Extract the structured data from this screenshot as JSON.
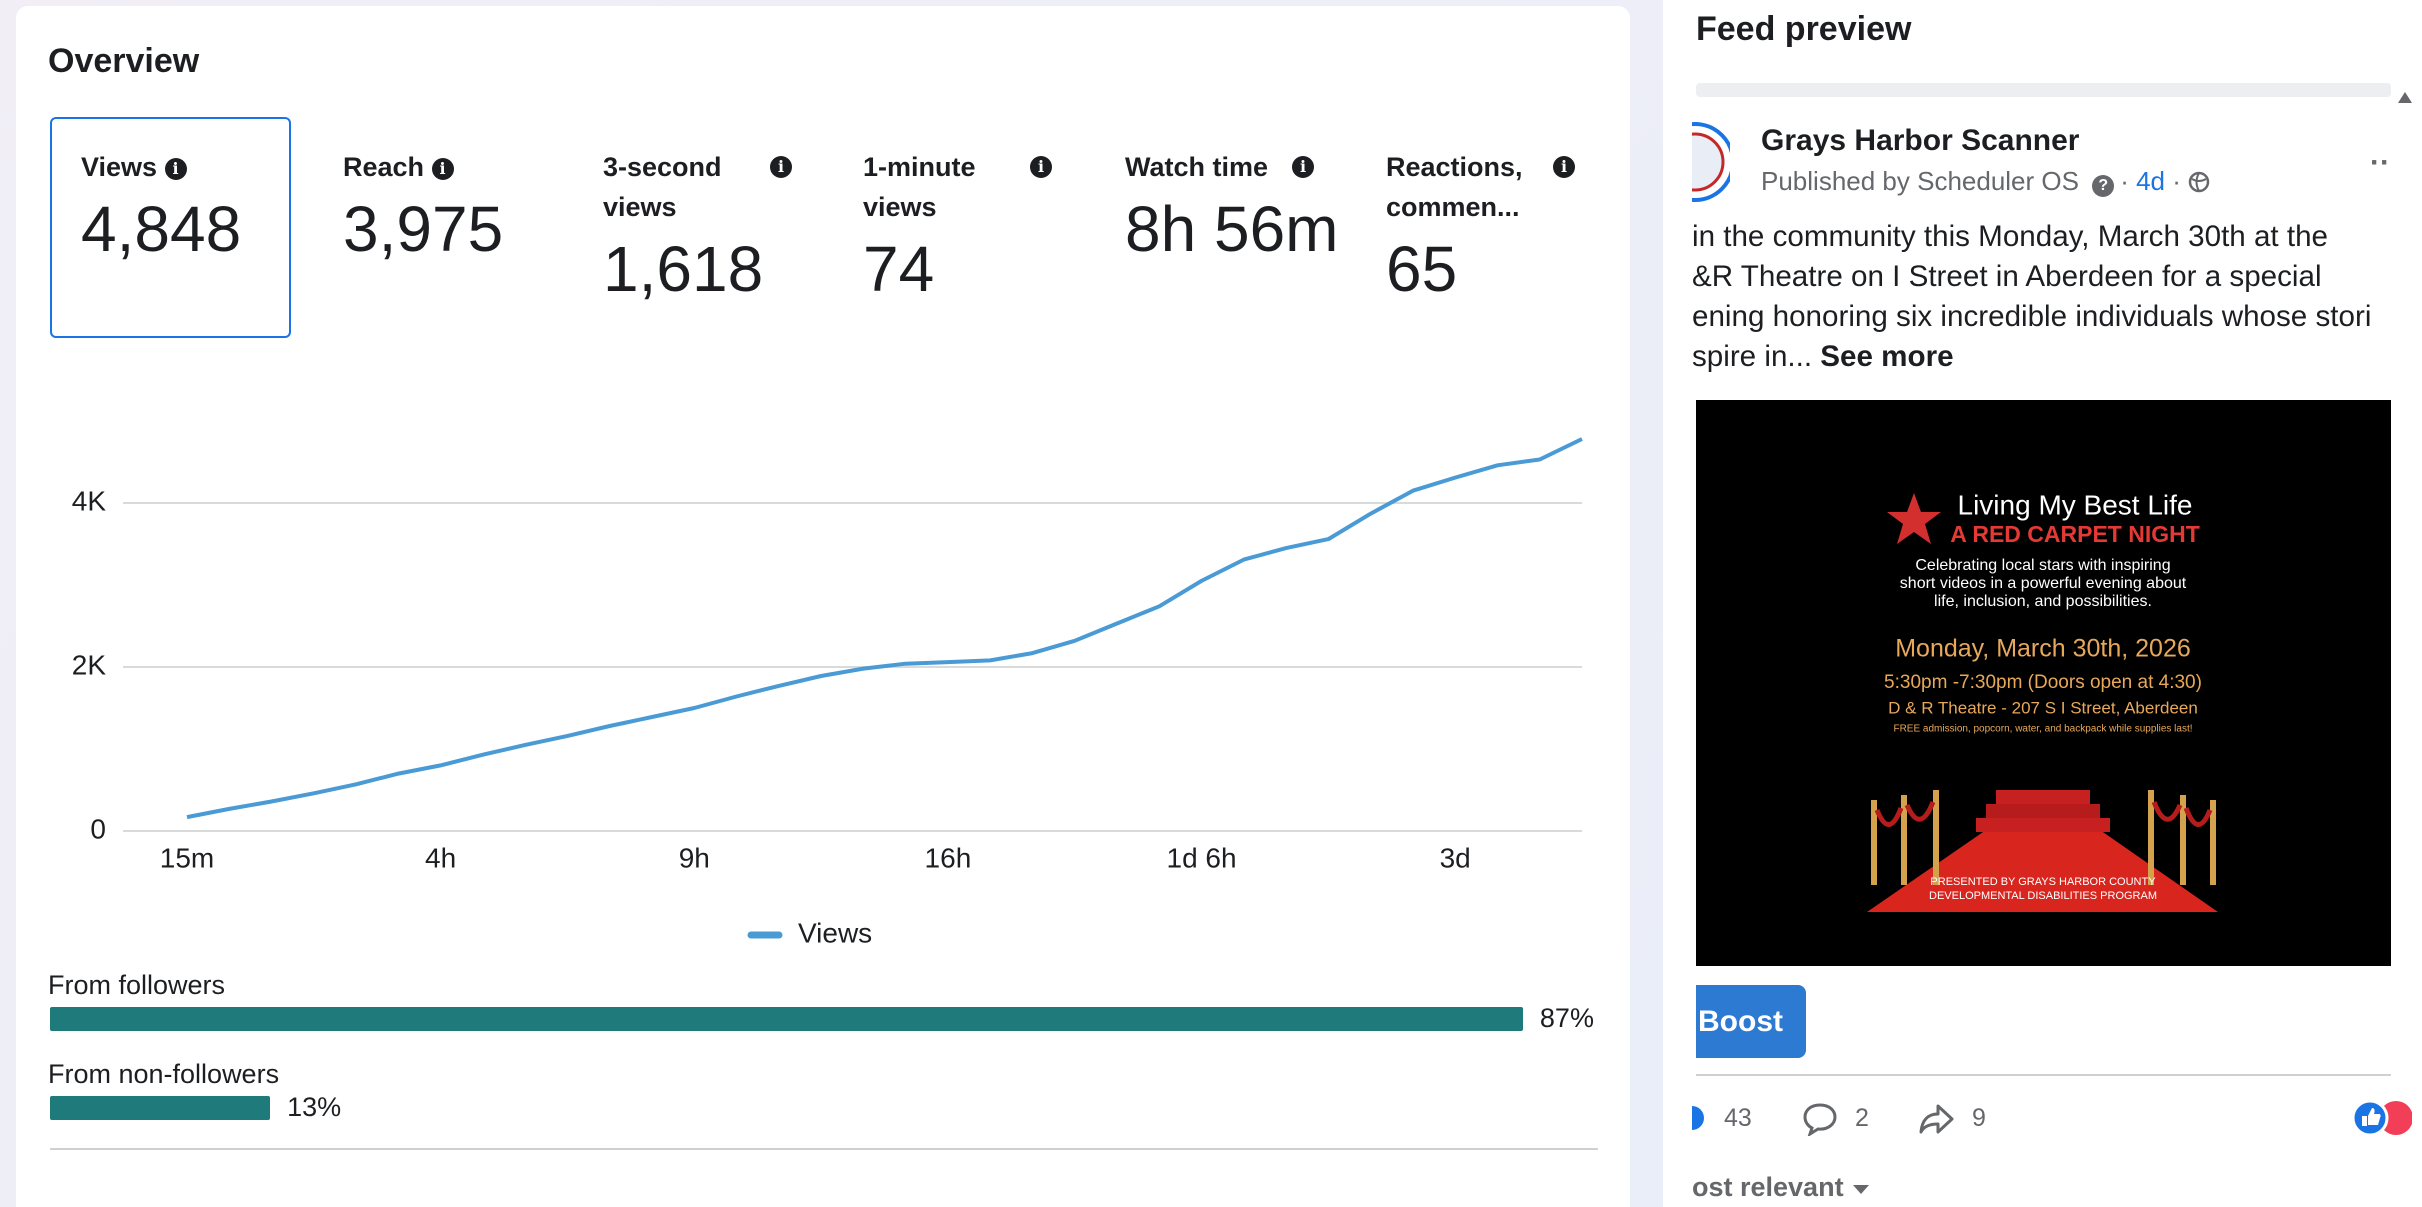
{
  "overview": {
    "title": "Overview",
    "metrics": [
      {
        "label": "Views",
        "value": "4,848"
      },
      {
        "label": "Reach",
        "value": "3,975"
      },
      {
        "label": "3-second views",
        "value": "1,618"
      },
      {
        "label": "1-minute views",
        "value": "74"
      },
      {
        "label": "Watch time",
        "value": "8h 56m"
      },
      {
        "label": "Reactions, commen...",
        "value": "65"
      }
    ]
  },
  "chart_data": {
    "type": "line",
    "categories": [
      "15m",
      null,
      null,
      null,
      null,
      null,
      "4h",
      null,
      null,
      null,
      null,
      null,
      "9h",
      null,
      null,
      null,
      null,
      null,
      "16h",
      null,
      null,
      null,
      null,
      null,
      "1d 6h",
      null,
      null,
      null,
      null,
      null,
      "3d",
      null,
      null,
      null
    ],
    "series": [
      {
        "name": "Views",
        "color": "#4a9bd5",
        "values": [
          170,
          270,
          360,
          460,
          570,
          700,
          800,
          930,
          1050,
          1160,
          1280,
          1390,
          1500,
          1640,
          1770,
          1890,
          1980,
          2040,
          2060,
          2080,
          2170,
          2320,
          2530,
          2740,
          3050,
          3310,
          3450,
          3560,
          3870,
          4150,
          4310,
          4460,
          4530,
          4780
        ]
      }
    ],
    "ylim": [
      0,
      5000
    ],
    "yticks": [
      0,
      {
        "value": 2000,
        "label": "2K"
      },
      {
        "value": 4000,
        "label": "4K"
      }
    ],
    "grid": true
  },
  "audience": {
    "categories": [
      "From followers",
      "From non-followers"
    ],
    "values": [
      87,
      13
    ],
    "value_labels": [
      "87%",
      "13%"
    ],
    "color": "#1f7b7b"
  },
  "feed": {
    "title": "Feed preview",
    "page_name": "Grays Harbor Scanner",
    "publisher": "Published by Scheduler OS",
    "age": "4d",
    "text_lines": [
      "in the community this Monday, March 30th at the",
      "&R Theatre on I Street in Aberdeen for a special",
      "ening honoring six incredible individuals whose stori",
      "spire in... "
    ],
    "see_more": "See more",
    "media": {
      "title": "Living My Best Life",
      "subtitle": "A RED CARPET NIGHT",
      "blurb": [
        "Celebrating local stars with inspiring",
        "short videos in a powerful evening about",
        "life, inclusion, and possibilities."
      ],
      "date": "Monday, March 30th, 2026",
      "time": "5:30pm -7:30pm (Doors open at 4:30)",
      "venue": "D & R Theatre - 207 S I Street, Aberdeen",
      "note": "FREE admission, popcorn, water, and backpack while supplies last!",
      "presenter": [
        "PRESENTED BY GRAYS HARBOR COUNTY",
        "DEVELOPMENTAL DISABILITIES PROGRAM"
      ]
    },
    "boost": "Boost",
    "likes": "43",
    "comments": "2",
    "shares": "9",
    "sort": "ost relevant"
  }
}
